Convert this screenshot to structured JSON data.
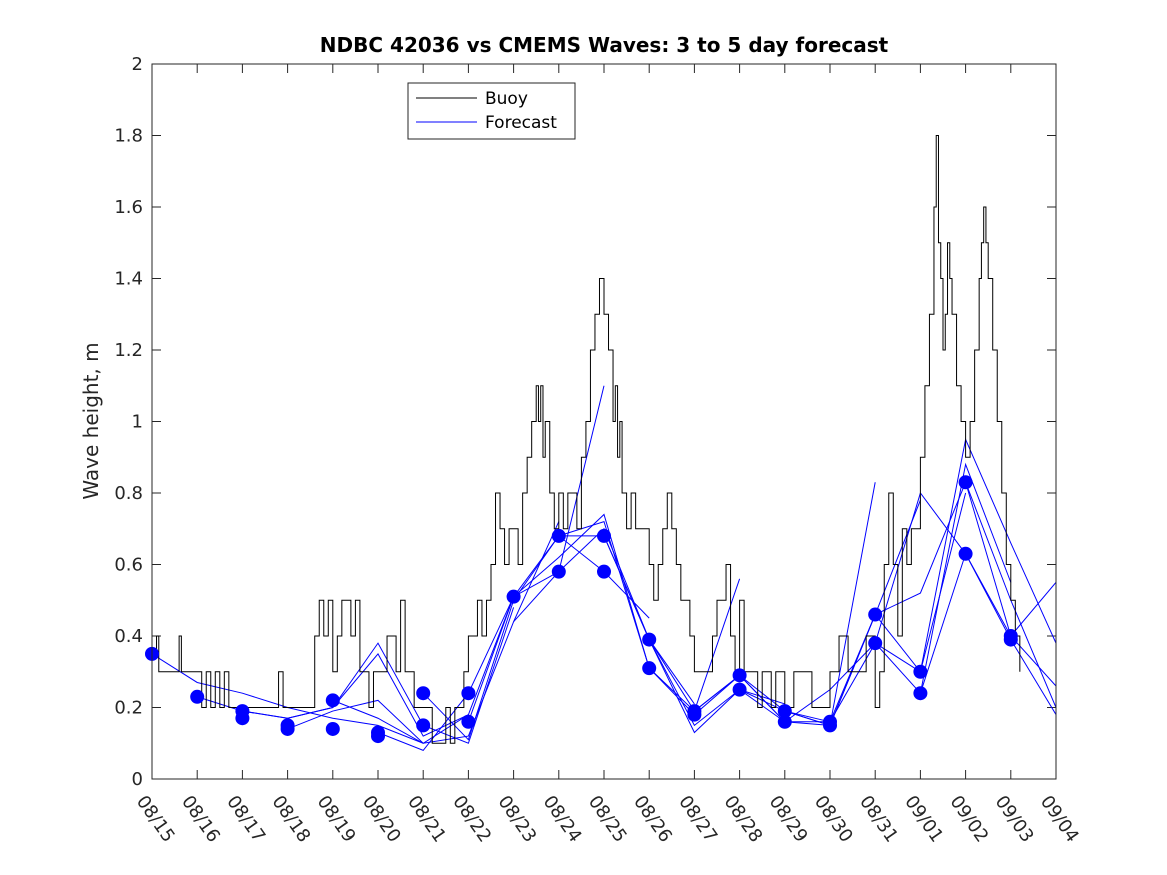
{
  "chart_data": {
    "type": "line",
    "title": "NDBC 42036 vs CMEMS Waves: 3 to 5 day forecast",
    "xlabel": "",
    "ylabel": "Wave height, m",
    "xlim": [
      0,
      20
    ],
    "ylim": [
      0,
      2
    ],
    "yticks": [
      0,
      0.2,
      0.4,
      0.6,
      0.8,
      1,
      1.2,
      1.4,
      1.6,
      1.8,
      2
    ],
    "ytick_labels": [
      "0",
      "0.2",
      "0.4",
      "0.6",
      "0.8",
      "1",
      "1.2",
      "1.4",
      "1.6",
      "1.8",
      "2"
    ],
    "xticks": [
      0,
      1,
      2,
      3,
      4,
      5,
      6,
      7,
      8,
      9,
      10,
      11,
      12,
      13,
      14,
      15,
      16,
      17,
      18,
      19,
      20
    ],
    "xtick_labels": [
      "08/15",
      "08/16",
      "08/17",
      "08/18",
      "08/19",
      "08/20",
      "08/21",
      "08/22",
      "08/23",
      "08/24",
      "08/25",
      "08/26",
      "08/27",
      "08/28",
      "08/29",
      "08/30",
      "08/31",
      "09/01",
      "09/02",
      "09/03",
      "09/04"
    ],
    "x_unit": "days since 08/15",
    "legend": {
      "position": "top-left",
      "entries": [
        "Buoy",
        "Forecast"
      ]
    },
    "colors": {
      "buoy": "#000000",
      "forecast": "#0000ff",
      "marker": "#0000ff",
      "axis": "#262626"
    },
    "series": [
      {
        "name": "Buoy",
        "type": "step",
        "x": [
          0,
          0.1,
          0.15,
          0.2,
          0.3,
          0.6,
          0.65,
          0.7,
          1.0,
          1.1,
          1.2,
          1.3,
          1.4,
          1.5,
          1.6,
          1.7,
          1.8,
          1.9,
          2.0,
          2.2,
          2.5,
          2.7,
          2.8,
          2.9,
          3.0,
          3.2,
          3.3,
          3.4,
          3.5,
          3.6,
          3.7,
          3.8,
          3.9,
          4.0,
          4.1,
          4.2,
          4.3,
          4.4,
          4.5,
          4.6,
          4.7,
          4.8,
          4.9,
          5.0,
          5.1,
          5.2,
          5.3,
          5.4,
          5.5,
          5.6,
          5.7,
          5.8,
          5.9,
          6.0,
          6.1,
          6.2,
          6.3,
          6.5,
          6.6,
          6.7,
          6.8,
          6.9,
          7.0,
          7.1,
          7.2,
          7.3,
          7.4,
          7.5,
          7.6,
          7.7,
          7.8,
          7.9,
          8.0,
          8.1,
          8.2,
          8.3,
          8.4,
          8.5,
          8.55,
          8.6,
          8.65,
          8.7,
          8.8,
          8.9,
          9.0,
          9.1,
          9.2,
          9.3,
          9.4,
          9.5,
          9.6,
          9.7,
          9.8,
          9.9,
          10.0,
          10.1,
          10.2,
          10.25,
          10.3,
          10.35,
          10.4,
          10.5,
          10.6,
          10.7,
          10.8,
          10.9,
          11.0,
          11.1,
          11.2,
          11.3,
          11.4,
          11.5,
          11.6,
          11.7,
          11.8,
          11.9,
          12.0,
          12.1,
          12.2,
          12.3,
          12.4,
          12.5,
          12.6,
          12.7,
          12.8,
          12.9,
          13.0,
          13.1,
          13.2,
          13.3,
          13.4,
          13.5,
          13.6,
          13.7,
          13.8,
          14.0,
          14.2,
          14.4,
          14.6,
          14.8,
          15.0,
          15.1,
          15.2,
          15.4,
          15.6,
          15.8,
          16.0,
          16.1,
          16.2,
          16.3,
          16.4,
          16.5,
          16.6,
          16.7,
          16.8,
          16.9,
          17.0,
          17.1,
          17.2,
          17.3,
          17.35,
          17.4,
          17.45,
          17.5,
          17.55,
          17.6,
          17.65,
          17.7,
          17.8,
          17.9,
          18.0,
          18.1,
          18.2,
          18.3,
          18.35,
          18.4,
          18.45,
          18.5,
          18.6,
          18.7,
          18.8,
          18.9,
          19.0,
          19.1,
          19.2
        ],
        "y": [
          0.35,
          0.4,
          0.3,
          0.3,
          0.3,
          0.4,
          0.3,
          0.3,
          0.3,
          0.2,
          0.3,
          0.2,
          0.3,
          0.2,
          0.3,
          0.2,
          0.2,
          0.2,
          0.2,
          0.2,
          0.2,
          0.2,
          0.3,
          0.2,
          0.2,
          0.2,
          0.2,
          0.2,
          0.2,
          0.4,
          0.5,
          0.4,
          0.5,
          0.3,
          0.4,
          0.5,
          0.5,
          0.4,
          0.5,
          0.3,
          0.3,
          0.2,
          0.3,
          0.3,
          0.3,
          0.4,
          0.4,
          0.3,
          0.5,
          0.3,
          0.3,
          0.2,
          0.2,
          0.2,
          0.2,
          0.1,
          0.1,
          0.2,
          0.1,
          0.2,
          0.2,
          0.3,
          0.4,
          0.4,
          0.5,
          0.4,
          0.5,
          0.6,
          0.8,
          0.7,
          0.6,
          0.7,
          0.7,
          0.6,
          0.8,
          0.9,
          1.0,
          1.1,
          1.0,
          1.1,
          0.9,
          1.0,
          0.8,
          0.7,
          0.8,
          0.7,
          0.8,
          0.8,
          0.7,
          0.9,
          1.0,
          1.2,
          1.3,
          1.4,
          1.3,
          1.2,
          1.0,
          1.1,
          0.9,
          1.0,
          0.8,
          0.7,
          0.8,
          0.7,
          0.7,
          0.7,
          0.6,
          0.5,
          0.6,
          0.7,
          0.8,
          0.7,
          0.6,
          0.5,
          0.5,
          0.4,
          0.3,
          0.3,
          0.3,
          0.3,
          0.4,
          0.5,
          0.5,
          0.6,
          0.4,
          0.3,
          0.5,
          0.3,
          0.3,
          0.3,
          0.2,
          0.3,
          0.3,
          0.2,
          0.3,
          0.2,
          0.3,
          0.3,
          0.2,
          0.2,
          0.3,
          0.3,
          0.4,
          0.3,
          0.3,
          0.4,
          0.2,
          0.3,
          0.6,
          0.8,
          0.6,
          0.4,
          0.7,
          0.6,
          0.7,
          0.7,
          0.9,
          1.1,
          1.3,
          1.6,
          1.8,
          1.5,
          1.4,
          1.2,
          1.3,
          1.5,
          1.4,
          1.3,
          1.1,
          1.0,
          0.9,
          1.0,
          1.2,
          1.4,
          1.5,
          1.6,
          1.5,
          1.4,
          1.2,
          1.0,
          0.8,
          0.6,
          0.5,
          0.4,
          0.3
        ]
      },
      {
        "name": "Forecast",
        "x": [
          0,
          1,
          2,
          3,
          4,
          5,
          6
        ],
        "y": [
          0.35,
          0.27,
          0.24,
          0.2,
          0.17,
          0.15,
          0.1
        ]
      },
      {
        "name": "Forecast",
        "x": [
          1,
          2,
          3,
          4,
          5,
          6,
          7
        ],
        "y": [
          0.23,
          0.19,
          0.17,
          0.2,
          0.35,
          0.12,
          0.18
        ]
      },
      {
        "name": "Forecast",
        "x": [
          2,
          3,
          4,
          5,
          6,
          7,
          8
        ],
        "y": [
          0.19,
          0.17,
          0.2,
          0.38,
          0.15,
          0.1,
          0.48
        ]
      },
      {
        "name": "Forecast",
        "x": [
          3,
          4,
          5,
          6,
          7,
          8,
          9
        ],
        "y": [
          0.14,
          0.19,
          0.22,
          0.1,
          0.12,
          0.44,
          0.72
        ]
      },
      {
        "name": "Forecast",
        "x": [
          4,
          5,
          6,
          7,
          8,
          9,
          10
        ],
        "y": [
          0.22,
          0.17,
          0.1,
          0.18,
          0.51,
          0.58,
          1.1
        ]
      },
      {
        "name": "Forecast",
        "x": [
          5,
          6,
          7,
          8,
          9,
          10,
          11
        ],
        "y": [
          0.13,
          0.08,
          0.24,
          0.51,
          0.68,
          0.58,
          0.45
        ]
      },
      {
        "name": "Forecast",
        "x": [
          6,
          7,
          8,
          9,
          10,
          11,
          12
        ],
        "y": [
          0.24,
          0.11,
          0.5,
          0.68,
          0.68,
          0.39,
          0.21
        ]
      },
      {
        "name": "Forecast",
        "x": [
          7,
          8,
          9,
          10,
          11,
          12,
          13
        ],
        "y": [
          0.16,
          0.51,
          0.62,
          0.74,
          0.31,
          0.19,
          0.56
        ]
      },
      {
        "name": "Forecast",
        "x": [
          8,
          9,
          10,
          11,
          12,
          13,
          14
        ],
        "y": [
          0.44,
          0.58,
          0.7,
          0.39,
          0.15,
          0.25,
          0.21
        ]
      },
      {
        "name": "Forecast",
        "x": [
          9,
          10,
          11,
          12,
          13,
          14,
          15
        ],
        "y": [
          0.68,
          0.72,
          0.31,
          0.18,
          0.29,
          0.16,
          0.15
        ]
      },
      {
        "name": "Forecast",
        "x": [
          10,
          11,
          12,
          13,
          14,
          15,
          16
        ],
        "y": [
          0.68,
          0.39,
          0.13,
          0.25,
          0.19,
          0.15,
          0.83
        ]
      },
      {
        "name": "Forecast",
        "x": [
          11,
          12,
          13,
          14,
          15,
          16,
          17
        ],
        "y": [
          0.39,
          0.19,
          0.29,
          0.16,
          0.16,
          0.46,
          0.78
        ]
      },
      {
        "name": "Forecast",
        "x": [
          12,
          13,
          14,
          15,
          16,
          17,
          18
        ],
        "y": [
          0.19,
          0.29,
          0.19,
          0.15,
          0.46,
          0.3,
          0.8
        ]
      },
      {
        "name": "Forecast",
        "x": [
          13,
          14,
          15,
          16,
          17,
          18,
          19
        ],
        "y": [
          0.25,
          0.16,
          0.25,
          0.38,
          0.24,
          0.88,
          0.55
        ]
      },
      {
        "name": "Forecast",
        "x": [
          14,
          15,
          16,
          17,
          18,
          19,
          20
        ],
        "y": [
          0.19,
          0.16,
          0.38,
          0.8,
          0.63,
          0.4,
          0.55
        ]
      },
      {
        "name": "Forecast",
        "x": [
          15,
          16,
          17,
          18,
          19,
          20
        ],
        "y": [
          0.15,
          0.46,
          0.52,
          0.83,
          0.4,
          0.26
        ]
      },
      {
        "name": "Forecast",
        "x": [
          16,
          17,
          18,
          19,
          20
        ],
        "y": [
          0.38,
          0.3,
          0.95,
          0.66,
          0.38
        ]
      },
      {
        "name": "Forecast",
        "x": [
          17,
          18,
          19,
          20
        ],
        "y": [
          0.24,
          0.63,
          0.39,
          0.18
        ]
      },
      {
        "name": "Forecast",
        "x": [
          18,
          19,
          20
        ],
        "y": [
          0.83,
          0.5,
          0.2
        ]
      }
    ],
    "markers": {
      "name": "Forecast initial points",
      "x": [
        0,
        1,
        2,
        2,
        3,
        3,
        4,
        4,
        5,
        5,
        6,
        6,
        7,
        7,
        8,
        9,
        9,
        10,
        10,
        11,
        11,
        12,
        12,
        13,
        13,
        14,
        14,
        15,
        15,
        16,
        16,
        17,
        17,
        18,
        18,
        19,
        19
      ],
      "y": [
        0.35,
        0.23,
        0.19,
        0.17,
        0.15,
        0.14,
        0.22,
        0.14,
        0.13,
        0.12,
        0.24,
        0.15,
        0.24,
        0.16,
        0.51,
        0.68,
        0.58,
        0.68,
        0.58,
        0.39,
        0.31,
        0.19,
        0.18,
        0.29,
        0.25,
        0.19,
        0.16,
        0.16,
        0.15,
        0.46,
        0.38,
        0.3,
        0.24,
        0.83,
        0.63,
        0.4,
        0.39
      ]
    }
  }
}
